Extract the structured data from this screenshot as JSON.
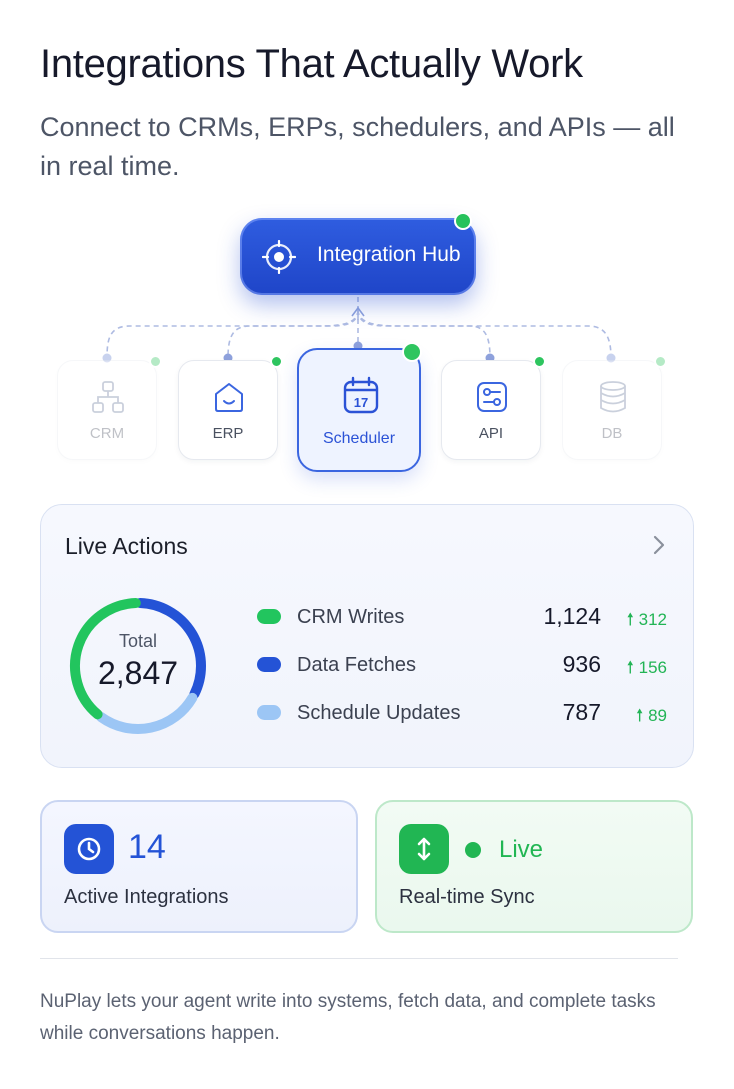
{
  "header": {
    "title": "Integrations That Actually Work",
    "subtitle": "Connect to CRMs, ERPs, schedulers, and APIs — all in real time."
  },
  "hub": {
    "label": "Integration Hub",
    "icon": "target-icon",
    "status_color": "#27c25c"
  },
  "nodes": [
    {
      "label": "CRM",
      "icon": "org-chart-icon",
      "state": "faded"
    },
    {
      "label": "ERP",
      "icon": "home-icon",
      "state": "normal"
    },
    {
      "label": "Scheduler",
      "icon": "calendar-icon",
      "state": "active",
      "calendar_day": "17"
    },
    {
      "label": "API",
      "icon": "sliders-icon",
      "state": "normal"
    },
    {
      "label": "DB",
      "icon": "database-icon",
      "state": "faded"
    }
  ],
  "live_actions": {
    "title": "Live Actions",
    "total_label": "Total",
    "total_value": "2,847",
    "items": [
      {
        "name": "CRM Writes",
        "value": "1,124",
        "delta": "312",
        "color": "#22c55e"
      },
      {
        "name": "Data Fetches",
        "value": "936",
        "delta": "156",
        "color": "#2453d6"
      },
      {
        "name": "Schedule Updates",
        "value": "787",
        "delta": "89",
        "color": "#9cc6f5"
      }
    ]
  },
  "chart_data": {
    "type": "pie",
    "categories": [
      "CRM Writes",
      "Data Fetches",
      "Schedule Updates"
    ],
    "values": [
      1124,
      936,
      787
    ],
    "title": "Live Actions"
  },
  "stats": {
    "integrations": {
      "count": "14",
      "label": "Active Integrations",
      "icon": "clock-icon"
    },
    "sync": {
      "status": "Live",
      "label": "Real-time Sync",
      "icon": "arrows-vertical-icon"
    }
  },
  "footer": {
    "text": "NuPlay lets your agent write into systems, fetch data, and complete tasks while conversations happen."
  }
}
